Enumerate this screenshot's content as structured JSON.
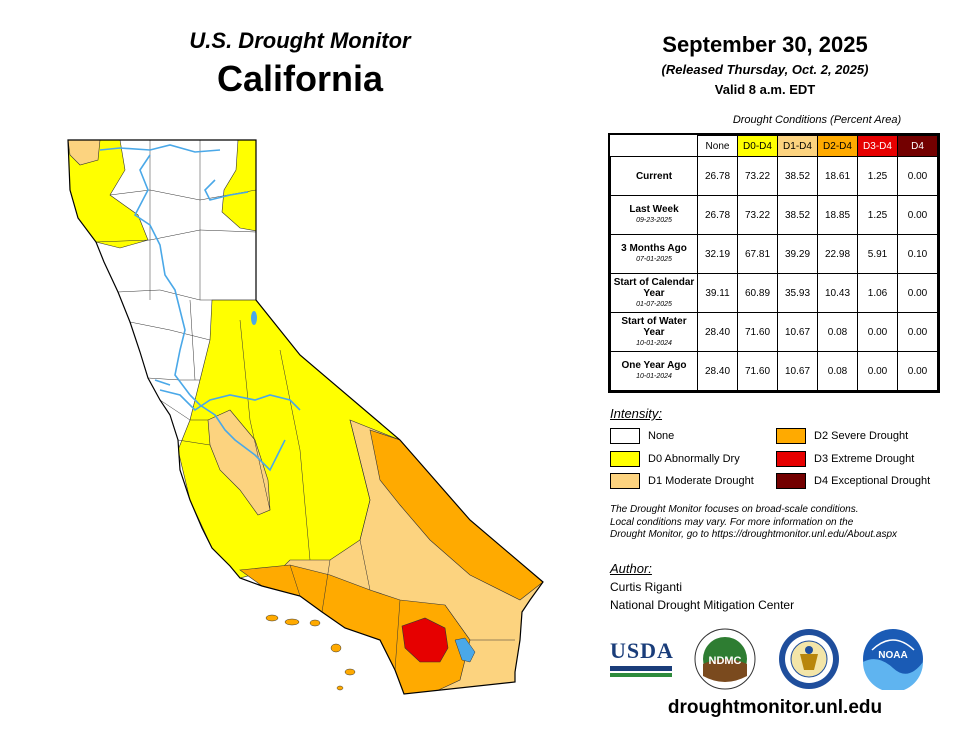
{
  "header": {
    "monitor_title": "U.S. Drought Monitor",
    "state": "California",
    "date": "September 30, 2025",
    "released": "(Released Thursday, Oct. 2, 2025)",
    "valid": "Valid 8 a.m. EDT"
  },
  "table": {
    "caption": "Drought Conditions (Percent Area)",
    "columns": [
      {
        "label": "None",
        "color": "#ffffff"
      },
      {
        "label": "D0-D4",
        "color": "#ffff00"
      },
      {
        "label": "D1-D4",
        "color": "#fcd37f"
      },
      {
        "label": "D2-D4",
        "color": "#ffaa00"
      },
      {
        "label": "D3-D4",
        "color": "#e60000"
      },
      {
        "label": "D4",
        "color": "#730000"
      }
    ],
    "rows": [
      {
        "label": "Current",
        "sublabel": "",
        "values": [
          "26.78",
          "73.22",
          "38.52",
          "18.61",
          "1.25",
          "0.00"
        ]
      },
      {
        "label": "Last Week",
        "sublabel": "09-23-2025",
        "values": [
          "26.78",
          "73.22",
          "38.52",
          "18.85",
          "1.25",
          "0.00"
        ]
      },
      {
        "label": "3 Months Ago",
        "sublabel": "07-01-2025",
        "values": [
          "32.19",
          "67.81",
          "39.29",
          "22.98",
          "5.91",
          "0.10"
        ]
      },
      {
        "label": "Start of Calendar Year",
        "sublabel": "01-07-2025",
        "values": [
          "39.11",
          "60.89",
          "35.93",
          "10.43",
          "1.06",
          "0.00"
        ]
      },
      {
        "label": "Start of Water Year",
        "sublabel": "10-01-2024",
        "values": [
          "28.40",
          "71.60",
          "10.67",
          "0.08",
          "0.00",
          "0.00"
        ]
      },
      {
        "label": "One Year Ago",
        "sublabel": "10-01-2024",
        "values": [
          "28.40",
          "71.60",
          "10.67",
          "0.08",
          "0.00",
          "0.00"
        ]
      }
    ]
  },
  "legend": {
    "heading": "Intensity:",
    "items": [
      {
        "label": "None",
        "color": "#ffffff"
      },
      {
        "label": "D0 Abnormally Dry",
        "color": "#ffff00"
      },
      {
        "label": "D1 Moderate Drought",
        "color": "#fcd37f"
      },
      {
        "label": "D2 Severe Drought",
        "color": "#ffaa00"
      },
      {
        "label": "D3 Extreme Drought",
        "color": "#e60000"
      },
      {
        "label": "D4 Exceptional Drought",
        "color": "#730000"
      }
    ]
  },
  "note": {
    "line1": "The Drought Monitor focuses on broad-scale conditions.",
    "line2": "Local conditions may vary. For more information on the",
    "line3": "Drought Monitor, go to https://droughtmonitor.unl.edu/About.aspx"
  },
  "author": {
    "heading": "Author:",
    "name": "Curtis Riganti",
    "org": "National Drought Mitigation Center"
  },
  "logos": {
    "usda": "USDA",
    "ndmc": "NDMC",
    "commerce": "commerce-seal-icon",
    "noaa": "NOAA"
  },
  "footer": {
    "url": "droughtmonitor.unl.edu"
  },
  "map": {
    "colors": {
      "none": "#ffffff",
      "d0": "#ffff00",
      "d1": "#fcd37f",
      "d2": "#ffaa00",
      "d3": "#e60000",
      "water": "#4aa8e8",
      "border": "#333333"
    }
  }
}
